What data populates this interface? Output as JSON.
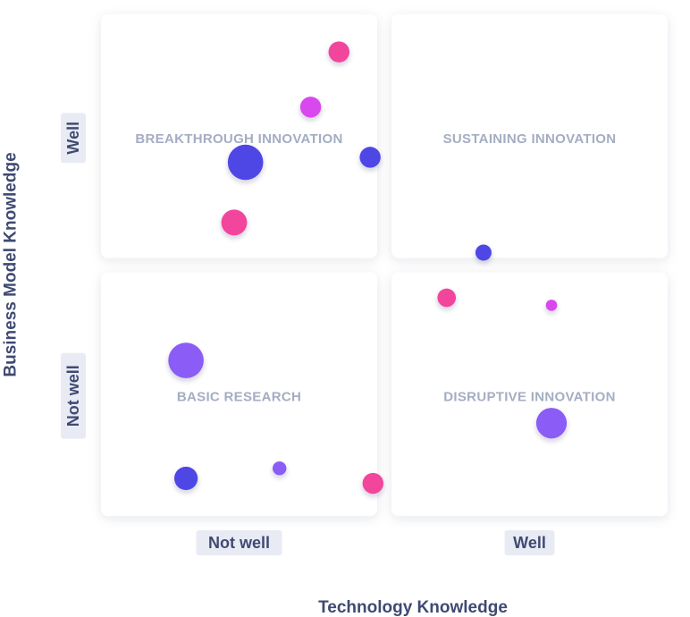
{
  "chart_data": {
    "type": "scatter",
    "xlabel": "Technology Knowledge",
    "ylabel": "Business Model Knowledge",
    "x_ticks": [
      "Not well",
      "Well"
    ],
    "y_ticks": [
      "Not well",
      "Well"
    ],
    "xlim": [
      0,
      2
    ],
    "ylim": [
      0,
      2
    ],
    "quadrants": [
      {
        "label": "BREAKTHROUGH INNOVATION",
        "x": 0,
        "y": 1
      },
      {
        "label": "SUSTAINING INNOVATION",
        "x": 1,
        "y": 1
      },
      {
        "label": "BASIC RESEARCH",
        "x": 0,
        "y": 0
      },
      {
        "label": "DISRUPTIVE INNOVATION",
        "x": 1,
        "y": 0
      }
    ],
    "points": [
      {
        "x": 0.84,
        "y": 1.85,
        "size": 3,
        "color": "#f2459c"
      },
      {
        "x": 0.74,
        "y": 1.63,
        "size": 3,
        "color": "#d946ef"
      },
      {
        "x": 0.51,
        "y": 1.41,
        "size": 6,
        "color": "#4f46e5"
      },
      {
        "x": 0.95,
        "y": 1.43,
        "size": 3,
        "color": "#4f46e5"
      },
      {
        "x": 0.47,
        "y": 1.17,
        "size": 4,
        "color": "#f2459c"
      },
      {
        "x": 1.35,
        "y": 1.05,
        "size": 2,
        "color": "#4f46e5"
      },
      {
        "x": 1.22,
        "y": 0.87,
        "size": 2.5,
        "color": "#f2459c"
      },
      {
        "x": 1.59,
        "y": 0.84,
        "size": 1,
        "color": "#d946ef"
      },
      {
        "x": 0.3,
        "y": 0.62,
        "size": 6,
        "color": "#8b5cf6"
      },
      {
        "x": 1.59,
        "y": 0.37,
        "size": 5,
        "color": "#8b5cf6"
      },
      {
        "x": 0.3,
        "y": 0.15,
        "size": 3.5,
        "color": "#4f46e5"
      },
      {
        "x": 0.63,
        "y": 0.19,
        "size": 1.5,
        "color": "#8b5cf6"
      },
      {
        "x": 0.96,
        "y": 0.13,
        "size": 3,
        "color": "#f2459c"
      }
    ]
  },
  "colors": {
    "panel": "#ffffff",
    "tick_bg": "#e9ebf4",
    "text": "#3f4a72",
    "quadrant_text": "#a4adc2"
  }
}
